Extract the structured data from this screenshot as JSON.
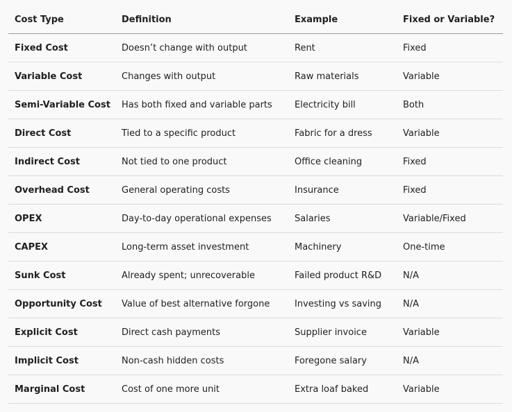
{
  "table": {
    "headers": [
      "Cost Type",
      "Definition",
      "Example",
      "Fixed or Variable?"
    ],
    "rows": [
      [
        "Fixed Cost",
        "Doesn’t change with output",
        "Rent",
        "Fixed"
      ],
      [
        "Variable Cost",
        "Changes with output",
        "Raw materials",
        "Variable"
      ],
      [
        "Semi-Variable Cost",
        "Has both fixed and variable parts",
        "Electricity bill",
        "Both"
      ],
      [
        "Direct Cost",
        "Tied to a specific product",
        "Fabric for a dress",
        "Variable"
      ],
      [
        "Indirect Cost",
        "Not tied to one product",
        "Office cleaning",
        "Fixed"
      ],
      [
        "Overhead Cost",
        "General operating costs",
        "Insurance",
        "Fixed"
      ],
      [
        "OPEX",
        "Day-to-day operational expenses",
        "Salaries",
        "Variable/Fixed"
      ],
      [
        "CAPEX",
        "Long-term asset investment",
        "Machinery",
        "One-time"
      ],
      [
        "Sunk Cost",
        "Already spent; unrecoverable",
        "Failed product R&D",
        "N/A"
      ],
      [
        "Opportunity Cost",
        "Value of best alternative forgone",
        "Investing vs saving",
        "N/A"
      ],
      [
        "Explicit Cost",
        "Direct cash payments",
        "Supplier invoice",
        "Variable"
      ],
      [
        "Implicit Cost",
        "Non-cash hidden costs",
        "Foregone salary",
        "N/A"
      ],
      [
        "Marginal Cost",
        "Cost of one more unit",
        "Extra loaf baked",
        "Variable"
      ]
    ]
  }
}
